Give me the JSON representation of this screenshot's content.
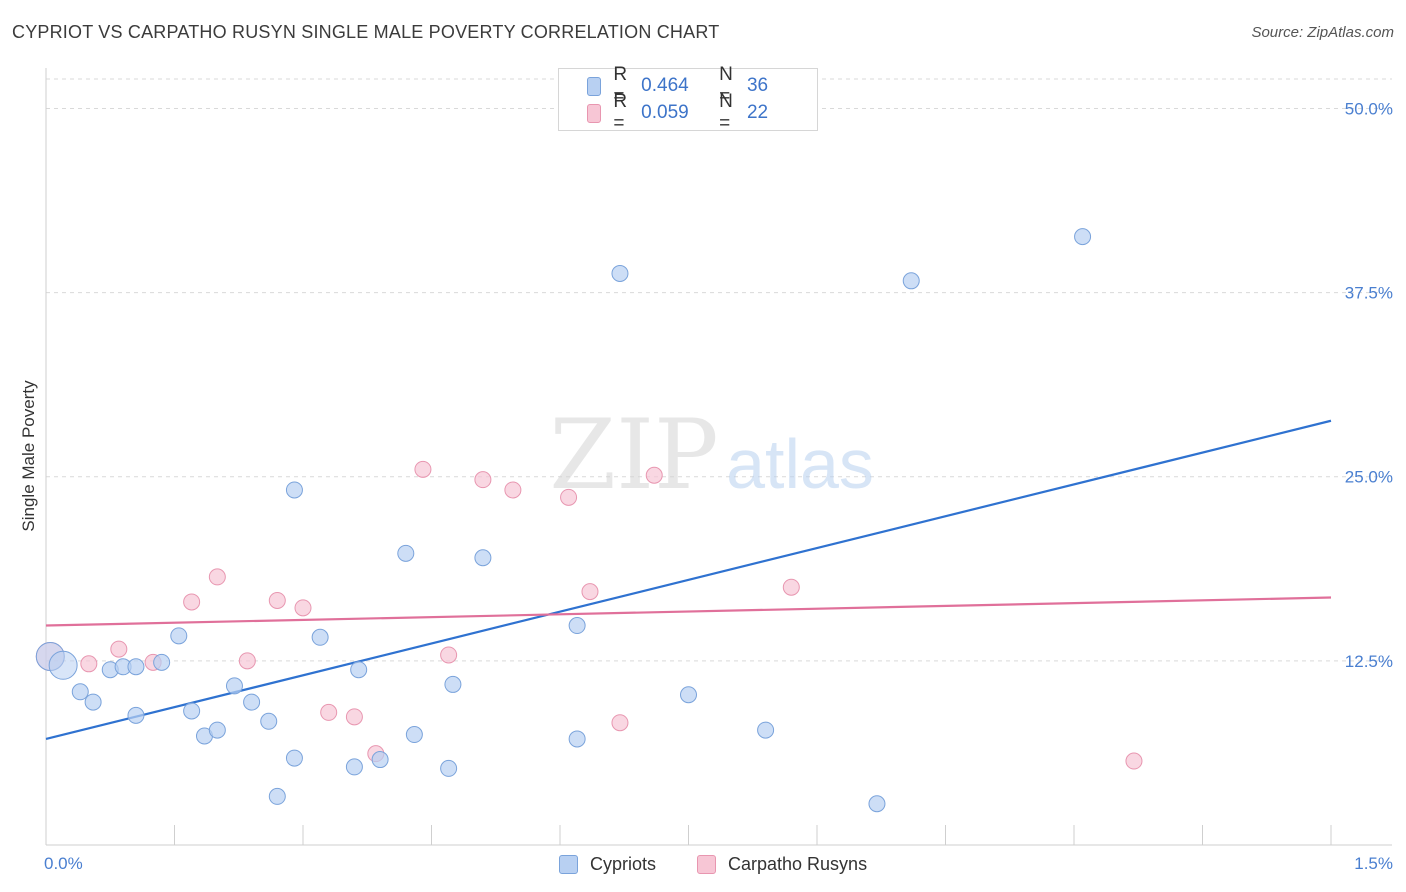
{
  "title": "CYPRIOT VS CARPATHO RUSYN SINGLE MALE POVERTY CORRELATION CHART",
  "source": "Source: ZipAtlas.com",
  "watermark": {
    "zip": "ZIP",
    "atlas": "atlas"
  },
  "legend": {
    "rows": [
      {
        "r_label": "R =",
        "r_value": "0.464",
        "n_label": "N =",
        "n_value": "36"
      },
      {
        "r_label": "R =",
        "r_value": "0.059",
        "n_label": "N =",
        "n_value": "22"
      }
    ]
  },
  "bottom_legend": {
    "series1": "Cypriots",
    "series2": "Carpatho Rusyns"
  },
  "colors": {
    "blue_fill": "#b8d0f2",
    "blue_stroke": "#7aa3db",
    "blue_line": "#2f72d0",
    "pink_fill": "#f7c6d5",
    "pink_stroke": "#e896b0",
    "pink_line": "#e0709a",
    "axis_text": "#4a7fd0",
    "grid": "#d9d9d9"
  },
  "chart_data": {
    "type": "scatter",
    "title": "CYPRIOT VS CARPATHO RUSYN SINGLE MALE POVERTY CORRELATION CHART",
    "xlabel": "",
    "ylabel": "Single Male Poverty",
    "xlim": [
      0,
      1.5
    ],
    "ylim": [
      0,
      52
    ],
    "x_tick_labels": [
      "0.0%",
      "1.5%"
    ],
    "y_ticks": [
      12.5,
      25.0,
      37.5,
      50.0
    ],
    "y_tick_labels": [
      "12.5%",
      "25.0%",
      "37.5%",
      "50.0%"
    ],
    "grid": true,
    "legend_position": "top-center",
    "series": [
      {
        "name": "Cypriots",
        "r": 0.464,
        "n": 36,
        "trend": {
          "x": [
            0,
            1.5
          ],
          "y": [
            7.2,
            28.8
          ]
        },
        "points": [
          [
            0.005,
            12.8,
            "big"
          ],
          [
            0.02,
            12.2,
            "big"
          ],
          [
            0.04,
            10.4
          ],
          [
            0.055,
            9.7
          ],
          [
            0.075,
            11.9
          ],
          [
            0.09,
            12.1
          ],
          [
            0.105,
            8.8
          ],
          [
            0.105,
            12.1
          ],
          [
            0.135,
            12.4
          ],
          [
            0.155,
            14.2
          ],
          [
            0.17,
            9.1
          ],
          [
            0.185,
            7.4
          ],
          [
            0.2,
            7.8
          ],
          [
            0.22,
            10.8
          ],
          [
            0.24,
            9.7
          ],
          [
            0.26,
            8.4
          ],
          [
            0.27,
            3.3
          ],
          [
            0.29,
            5.9
          ],
          [
            0.29,
            24.1
          ],
          [
            0.32,
            14.1
          ],
          [
            0.36,
            5.3
          ],
          [
            0.365,
            11.9
          ],
          [
            0.39,
            5.8
          ],
          [
            0.42,
            19.8
          ],
          [
            0.43,
            7.5
          ],
          [
            0.47,
            5.2
          ],
          [
            0.475,
            10.9
          ],
          [
            0.51,
            19.5
          ],
          [
            0.62,
            7.2
          ],
          [
            0.62,
            14.9
          ],
          [
            0.67,
            38.8
          ],
          [
            0.75,
            10.2
          ],
          [
            0.84,
            7.8
          ],
          [
            0.97,
            2.8
          ],
          [
            1.01,
            38.3
          ],
          [
            1.21,
            41.3
          ]
        ]
      },
      {
        "name": "Carpatho Rusyns",
        "r": 0.059,
        "n": 22,
        "trend": {
          "x": [
            0,
            1.5
          ],
          "y": [
            14.9,
            16.8
          ]
        },
        "points": [
          [
            0.005,
            12.8,
            "big"
          ],
          [
            0.05,
            12.3
          ],
          [
            0.085,
            13.3
          ],
          [
            0.125,
            12.4
          ],
          [
            0.17,
            16.5
          ],
          [
            0.2,
            18.2
          ],
          [
            0.235,
            12.5
          ],
          [
            0.27,
            16.6
          ],
          [
            0.3,
            16.1
          ],
          [
            0.33,
            9.0
          ],
          [
            0.36,
            8.7
          ],
          [
            0.385,
            6.2
          ],
          [
            0.44,
            25.5
          ],
          [
            0.47,
            12.9
          ],
          [
            0.51,
            24.8
          ],
          [
            0.545,
            24.1
          ],
          [
            0.61,
            23.6
          ],
          [
            0.635,
            17.2
          ],
          [
            0.67,
            8.3
          ],
          [
            0.71,
            25.1
          ],
          [
            0.87,
            17.5
          ],
          [
            1.27,
            5.7
          ]
        ]
      }
    ]
  }
}
